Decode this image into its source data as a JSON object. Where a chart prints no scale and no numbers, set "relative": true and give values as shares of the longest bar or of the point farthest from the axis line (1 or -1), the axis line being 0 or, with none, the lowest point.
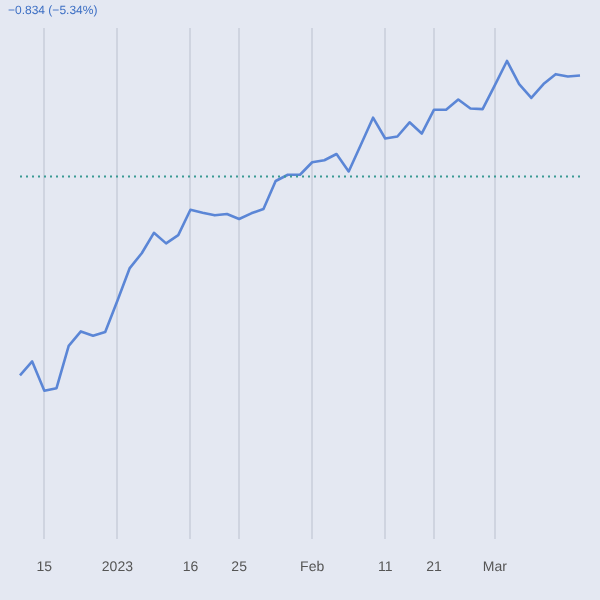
{
  "chart_data": {
    "type": "line",
    "relative": true,
    "annotations": [
      "−0.834 (−5.34%)"
    ],
    "categories": [
      null,
      null,
      "15",
      null,
      null,
      null,
      null,
      null,
      "2023",
      null,
      null,
      null,
      null,
      null,
      "16",
      null,
      null,
      null,
      "25",
      null,
      null,
      null,
      null,
      null,
      "Feb",
      null,
      null,
      null,
      null,
      null,
      "11",
      null,
      null,
      null,
      "21",
      null,
      null,
      null,
      null,
      "Mar",
      null,
      null,
      null,
      null,
      null,
      null,
      null
    ],
    "series": [
      {
        "color": "#5b86d6",
        "values": [
          0.047,
          0.089,
          0,
          0.008,
          0.136,
          0.18,
          0.167,
          0.178,
          0.273,
          0.371,
          0.417,
          0.479,
          0.447,
          0.472,
          0.549,
          0.54,
          0.532,
          0.536,
          0.521,
          0.538,
          0.551,
          0.636,
          0.655,
          0.655,
          0.693,
          0.699,
          0.718,
          0.665,
          0.746,
          0.828,
          0.765,
          0.771,
          0.814,
          0.78,
          0.852,
          0.852,
          0.883,
          0.856,
          0.854,
          0.926,
          1,
          0.93,
          0.888,
          0.93,
          0.96,
          0.953,
          0.956
        ]
      }
    ],
    "ref_lines": [
      {
        "axis": "y",
        "value": 0.65,
        "color": "#3a9a94",
        "line_style": "dotted"
      }
    ],
    "grid": "x",
    "marker": "none",
    "line_style": "solid",
    "legend": false
  }
}
